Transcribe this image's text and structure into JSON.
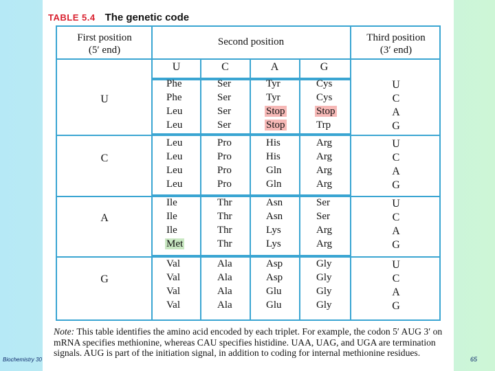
{
  "slide": {
    "footer": "Biochemistry 30",
    "page_number": "65"
  },
  "table": {
    "number": "TABLE 5.4",
    "title": "The genetic code",
    "first_position_header": [
      "First position",
      "(5′ end)"
    ],
    "second_position_header": "Second position",
    "third_position_header": [
      "Third position",
      "(3′ end)"
    ],
    "second_bases": [
      "U",
      "C",
      "A",
      "G"
    ],
    "groups": [
      {
        "first": "U",
        "third": [
          "U",
          "C",
          "A",
          "G"
        ],
        "rows": [
          [
            "Phe",
            "Ser",
            "Tyr",
            "Cys"
          ],
          [
            "Phe",
            "Ser",
            "Tyr",
            "Cys"
          ],
          [
            "Leu",
            "Ser",
            "Stop",
            "Stop"
          ],
          [
            "Leu",
            "Ser",
            "Stop",
            "Trp"
          ]
        ]
      },
      {
        "first": "C",
        "third": [
          "U",
          "C",
          "A",
          "G"
        ],
        "rows": [
          [
            "Leu",
            "Pro",
            "His",
            "Arg"
          ],
          [
            "Leu",
            "Pro",
            "His",
            "Arg"
          ],
          [
            "Leu",
            "Pro",
            "Gln",
            "Arg"
          ],
          [
            "Leu",
            "Pro",
            "Gln",
            "Arg"
          ]
        ]
      },
      {
        "first": "A",
        "third": [
          "U",
          "C",
          "A",
          "G"
        ],
        "rows": [
          [
            "Ile",
            "Thr",
            "Asn",
            "Ser"
          ],
          [
            "Ile",
            "Thr",
            "Asn",
            "Ser"
          ],
          [
            "Ile",
            "Thr",
            "Lys",
            "Arg"
          ],
          [
            "Met",
            "Thr",
            "Lys",
            "Arg"
          ]
        ]
      },
      {
        "first": "G",
        "third": [
          "U",
          "C",
          "A",
          "G"
        ],
        "rows": [
          [
            "Val",
            "Ala",
            "Asp",
            "Gly"
          ],
          [
            "Val",
            "Ala",
            "Asp",
            "Gly"
          ],
          [
            "Val",
            "Ala",
            "Glu",
            "Gly"
          ],
          [
            "Val",
            "Ala",
            "Glu",
            "Gly"
          ]
        ]
      }
    ],
    "highlight_colors": {
      "stop": "#f6b8b6",
      "start": "#c9e8c2",
      "rule": "#3aa5d2",
      "title_number": "#d9212f"
    },
    "note_label": "Note:",
    "note_text": "This table identifies the amino acid encoded by each triplet. For example, the codon 5′ AUG 3′ on mRNA specifies methionine, whereas CAU specifies histidine. UAA, UAG, and UGA are termination signals. AUG is part of the initiation signal, in addition to coding for internal methionine residues."
  }
}
